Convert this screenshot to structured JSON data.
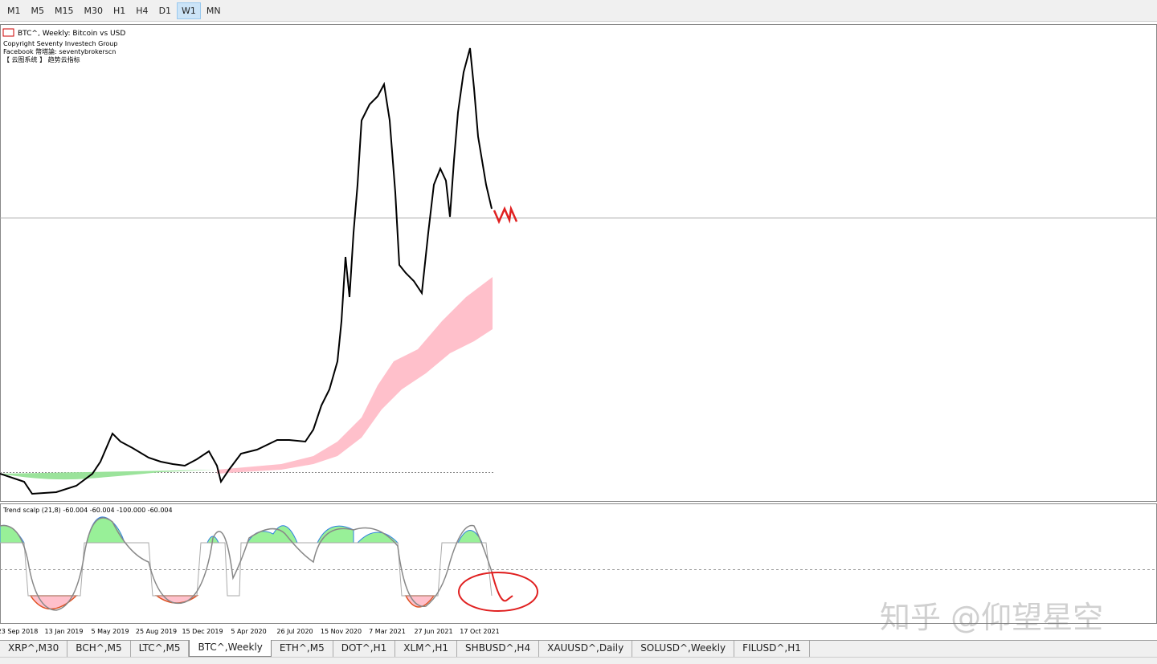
{
  "toolbar": {
    "timeframes": [
      "M1",
      "M5",
      "M15",
      "M30",
      "H1",
      "H4",
      "D1",
      "W1",
      "MN"
    ],
    "active": "W1"
  },
  "chart": {
    "symbol": "BTC^, Weekly:  Bitcoin vs USD",
    "lines": [
      "Copyright Seventy Investech Group",
      " Facebook 幣塔論: seventybrokerscn",
      "【 云图系统 】 趋势云指标"
    ]
  },
  "indicator": {
    "label": "Trend scalp (21,8) -60.004 -60.004 -100.000 -60.004"
  },
  "x_axis": {
    "labels": [
      "23 Sep 2018",
      "13 Jan 2019",
      "5 May 2019",
      "25 Aug 2019",
      "15 Dec 2019",
      "5 Apr 2020",
      "26 Jul 2020",
      "15 Nov 2020",
      "7 Mar 2021",
      "27 Jun 2021",
      "17 Oct 2021"
    ]
  },
  "tabs": {
    "items": [
      "XRP^,M30",
      "BCH^,M5",
      "LTC^,M5",
      "BTC^,Weekly",
      "ETH^,M5",
      "DOT^,H1",
      "XLM^,H1",
      "SHBUSD^,H4",
      "XAUUSD^,Daily",
      "SOLUSD^,Weekly",
      "FILUSD^,H1"
    ],
    "active": "BTC^,Weekly"
  },
  "watermark": "知乎 @仰望星空"
}
